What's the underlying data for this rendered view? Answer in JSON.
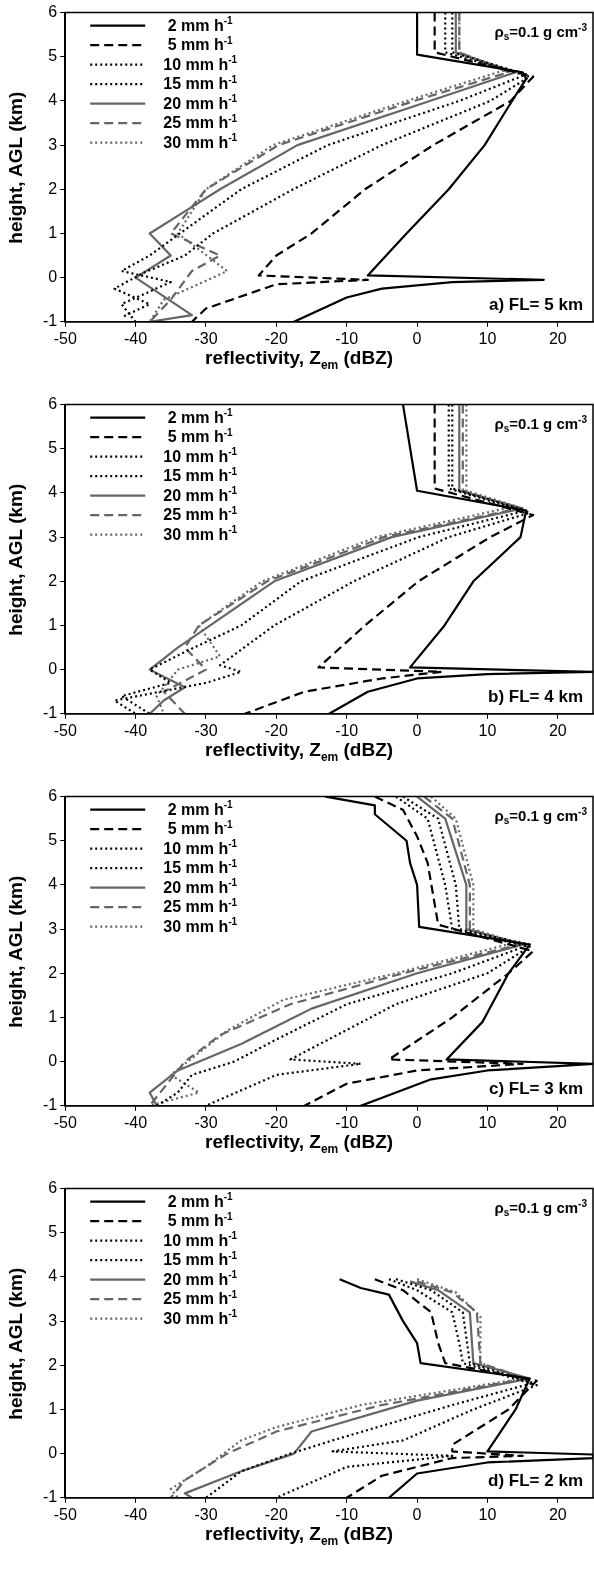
{
  "chart_data": [
    {
      "type": "line",
      "xlabel": "reflectivity, Z$_{em}$ (dBZ)",
      "ylabel": "height, AGL (km)",
      "xlim": [
        -50,
        25
      ],
      "xticks": [
        -50,
        -40,
        -30,
        -20,
        -10,
        0,
        10,
        20
      ],
      "ylim": [
        -1,
        6
      ],
      "yticks": [
        -1,
        0,
        1,
        2,
        3,
        4,
        5,
        6
      ],
      "legend": "top left",
      "annotations": [
        "ρ$_{s}$=0.1 g cm$^{-3}$",
        "a) FL= 5 km"
      ],
      "series": [
        {
          "name": "2 mm h$^{-1}$",
          "color": "#000000",
          "line_style": "solid",
          "x": [
            0,
            0,
            15,
            15.5,
            13.5,
            9.6,
            4.5,
            -1.5,
            -7,
            18,
            5,
            -5,
            -10,
            -17.5
          ],
          "values": [
            6,
            5.05,
            4.65,
            4.5,
            4,
            3,
            2,
            1,
            0.05,
            -0.05,
            -0.1,
            -0.25,
            -0.45,
            -1
          ]
        },
        {
          "name": "5 mm h$^{-1}$",
          "color": "#000000",
          "line_style": "dashed",
          "x": [
            2.5,
            2.5,
            16.5,
            13.3,
            2.3,
            -7.4,
            -15,
            -20,
            -22.5,
            -7,
            -20,
            -30,
            -32
          ],
          "values": [
            6,
            5.1,
            4.55,
            4,
            3,
            2,
            1,
            0.5,
            0.05,
            -0.05,
            -0.15,
            -0.7,
            -1
          ]
        },
        {
          "name": "10 mm h$^{-1}$",
          "color": "#000000",
          "line_style": "dotted",
          "x": [
            4,
            4,
            16,
            10.4,
            -5,
            -17.6,
            -29,
            -33,
            -39,
            -43,
            -38,
            -42
          ],
          "values": [
            6,
            5.1,
            4.55,
            4,
            3,
            2,
            1,
            0.5,
            0.1,
            -0.25,
            -0.6,
            -0.9
          ]
        },
        {
          "name": "15 mm h$^{-1}$",
          "color": "#000000",
          "line_style": "dotted",
          "x": [
            5,
            5,
            15.5,
            6,
            -12.7,
            -25,
            -33.7,
            -38,
            -42,
            -35,
            -42,
            -40
          ],
          "values": [
            6,
            5.1,
            4.6,
            4,
            3,
            2,
            1,
            0.5,
            0.15,
            -0.1,
            -0.6,
            -1
          ]
        },
        {
          "name": "20 mm h$^{-1}$",
          "color": "#666666",
          "line_style": "solid",
          "x": [
            5.5,
            5.5,
            14,
            1.8,
            -17,
            -28,
            -33,
            -38,
            -35,
            -40,
            -32,
            -38
          ],
          "values": [
            6,
            5.1,
            4.65,
            4,
            3,
            2,
            1.5,
            1,
            0.5,
            0,
            -0.85,
            -1
          ]
        },
        {
          "name": "25 mm h$^{-1}$",
          "color": "#666666",
          "line_style": "dashed",
          "x": [
            6,
            6,
            13,
            -0.4,
            -19.7,
            -30,
            -35,
            -28,
            -32,
            -35,
            -38
          ],
          "values": [
            6,
            5.1,
            4.65,
            4,
            3,
            2,
            1,
            0.5,
            0.15,
            -0.5,
            -1
          ]
        },
        {
          "name": "30 mm h$^{-1}$",
          "color": "#666666",
          "line_style": "dotted",
          "x": [
            6,
            6,
            12.5,
            -1.5,
            -20.5,
            -30,
            -34,
            -27,
            -29,
            -36,
            -38
          ],
          "values": [
            6,
            5.1,
            4.7,
            4,
            3,
            2,
            1,
            0.15,
            0,
            -0.5,
            -1
          ]
        }
      ]
    },
    {
      "type": "line",
      "xlabel": "reflectivity, Z$_{em}$ (dBZ)",
      "ylabel": "height, AGL (km)",
      "xlim": [
        -50,
        25
      ],
      "xticks": [
        -50,
        -40,
        -30,
        -20,
        -10,
        0,
        10,
        20
      ],
      "ylim": [
        -1,
        6
      ],
      "yticks": [
        -1,
        0,
        1,
        2,
        3,
        4,
        5,
        6
      ],
      "legend": "top left",
      "annotations": [
        "ρ$_{s}$=0.1 g cm$^{-3}$",
        "b) FL= 4 km"
      ],
      "series": [
        {
          "name": "2 mm h$^{-1}$",
          "color": "#000000",
          "line_style": "solid",
          "x": [
            -2,
            0,
            15.5,
            14.7,
            8,
            3.9,
            -1,
            25,
            10,
            0,
            -7,
            -12.5
          ],
          "values": [
            6,
            4.05,
            3.6,
            3,
            2,
            1,
            0.05,
            -0.05,
            -0.1,
            -0.2,
            -0.5,
            -1
          ]
        },
        {
          "name": "5 mm h$^{-1}$",
          "color": "#000000",
          "line_style": "dashed",
          "x": [
            2.5,
            2.5,
            16.5,
            10.4,
            0.2,
            -7.4,
            -14,
            3.5,
            -5,
            -16,
            -24.5
          ],
          "values": [
            6,
            4.1,
            3.5,
            3,
            2,
            1,
            0.05,
            -0.05,
            -0.2,
            -0.5,
            -1
          ]
        },
        {
          "name": "10 mm h$^{-1}$",
          "color": "#000000",
          "line_style": "dotted",
          "x": [
            4.5,
            4.5,
            16,
            4.5,
            -9,
            -20.3,
            -28,
            -25,
            -30,
            -43,
            -40
          ],
          "values": [
            6,
            4.1,
            3.55,
            3,
            2,
            1,
            0.1,
            -0.05,
            -0.3,
            -0.7,
            -1
          ]
        },
        {
          "name": "15 mm h$^{-1}$",
          "color": "#000000",
          "line_style": "dotted",
          "x": [
            5,
            5,
            15.5,
            0.2,
            -16.5,
            -25,
            -33,
            -38,
            -35,
            -42,
            -38
          ],
          "values": [
            6,
            4.1,
            3.6,
            3,
            2,
            1,
            0.4,
            0,
            -0.3,
            -0.6,
            -1
          ]
        },
        {
          "name": "20 mm h$^{-1}$",
          "color": "#666666",
          "line_style": "solid",
          "x": [
            6,
            6,
            15,
            -3.6,
            -20.3,
            -29.4,
            -34,
            -38,
            -33,
            -36,
            -38
          ],
          "values": [
            6,
            4.05,
            3.65,
            3,
            2,
            1,
            0.5,
            0,
            -0.4,
            -0.7,
            -1
          ]
        },
        {
          "name": "25 mm h$^{-1}$",
          "color": "#666666",
          "line_style": "dashed",
          "x": [
            6.5,
            6.5,
            14.5,
            -4.7,
            -21.3,
            -31,
            -33,
            -30,
            -36,
            -33
          ],
          "values": [
            6,
            4.05,
            3.65,
            3,
            2,
            1,
            0.5,
            0,
            -0.5,
            -1
          ]
        },
        {
          "name": "30 mm h$^{-1}$",
          "color": "#666666",
          "line_style": "dotted",
          "x": [
            7,
            7,
            14,
            -5.8,
            -22,
            -31,
            -28,
            -34,
            -37,
            -36
          ],
          "values": [
            6,
            4.05,
            3.7,
            3,
            2,
            1,
            0.3,
            0,
            -0.6,
            -1
          ]
        }
      ]
    },
    {
      "type": "line",
      "xlabel": "reflectivity, Z$_{em}$ (dBZ)",
      "ylabel": "height, AGL (km)",
      "xlim": [
        -50,
        25
      ],
      "xticks": [
        -50,
        -40,
        -30,
        -20,
        -10,
        0,
        10,
        20
      ],
      "ylim": [
        -1,
        6
      ],
      "yticks": [
        -1,
        0,
        1,
        2,
        3,
        4,
        5,
        6
      ],
      "legend": "top left",
      "annotations": [
        "ρ$_{s}$=0.1 g cm$^{-3}$",
        "c) FL= 3 km"
      ],
      "series": [
        {
          "name": "2 mm h$^{-1}$",
          "color": "#000000",
          "line_style": "solid",
          "x": [
            -13,
            -6,
            -6,
            -1.5,
            -1,
            0,
            0.3,
            16,
            13,
            9.3,
            4.2,
            25,
            20,
            10,
            2,
            -8
          ],
          "values": [
            6,
            5.8,
            5.6,
            5,
            4.5,
            4,
            3.05,
            2.65,
            2,
            0.9,
            0.05,
            -0.05,
            -0.1,
            -0.2,
            -0.4,
            -1
          ]
        },
        {
          "name": "5 mm h$^{-1}$",
          "color": "#000000",
          "line_style": "dashed",
          "x": [
            -6,
            -2,
            0,
            1.5,
            3,
            16.5,
            13,
            5,
            -4,
            15,
            0,
            -10,
            -16
          ],
          "values": [
            6,
            5.7,
            5.1,
            4.5,
            3.1,
            2.5,
            2,
            1,
            0.05,
            -0.05,
            -0.2,
            -0.5,
            -1
          ]
        },
        {
          "name": "10 mm h$^{-1}$",
          "color": "#000000",
          "line_style": "dotted",
          "x": [
            -3,
            1.5,
            4,
            5,
            16,
            10,
            -3,
            -18,
            -8,
            -20,
            -30
          ],
          "values": [
            6,
            5.5,
            4,
            3,
            2.6,
            2,
            1.3,
            0.05,
            -0.05,
            -0.3,
            -1
          ]
        },
        {
          "name": "15 mm h$^{-1}$",
          "color": "#000000",
          "line_style": "dotted",
          "x": [
            -2,
            3,
            5.5,
            6,
            16,
            5,
            -10,
            -20,
            -26,
            -32,
            -34,
            -37
          ],
          "values": [
            6,
            5.5,
            4,
            3,
            2.65,
            2,
            1.3,
            0.5,
            0,
            -0.3,
            -0.7,
            -1
          ]
        },
        {
          "name": "20 mm h$^{-1}$",
          "color": "#666666",
          "line_style": "solid",
          "x": [
            0,
            4,
            7,
            7,
            15,
            0,
            -15,
            -25,
            -34,
            -38,
            -37
          ],
          "values": [
            6,
            5.5,
            4,
            3,
            2.65,
            2,
            1.2,
            0.4,
            -0.2,
            -0.7,
            -1
          ]
        },
        {
          "name": "25 mm h$^{-1}$",
          "color": "#666666",
          "line_style": "dashed",
          "x": [
            1,
            5,
            7.5,
            7.5,
            14.5,
            -2,
            -18,
            -28,
            -33,
            -36,
            -38
          ],
          "values": [
            6,
            5.5,
            4,
            3,
            2.65,
            2,
            1.3,
            0.6,
            0,
            -0.6,
            -1
          ]
        },
        {
          "name": "30 mm h$^{-1}$",
          "color": "#666666",
          "line_style": "dotted",
          "x": [
            2,
            5.5,
            8,
            8,
            14,
            -3,
            -19,
            -27,
            -35,
            -31,
            -38
          ],
          "values": [
            6,
            5.5,
            4,
            3,
            2.7,
            2,
            1.4,
            0.7,
            -0.3,
            -0.7,
            -1
          ]
        }
      ]
    },
    {
      "type": "line",
      "xlabel": "reflectivity, Z$_{em}$ (dBZ)",
      "ylabel": "height, AGL (km)",
      "xlim": [
        -50,
        25
      ],
      "xticks": [
        -50,
        -40,
        -30,
        -20,
        -10,
        0,
        10,
        20
      ],
      "ylim": [
        -1,
        6
      ],
      "yticks": [
        -1,
        0,
        1,
        2,
        3,
        4,
        5,
        6
      ],
      "legend": "top left",
      "annotations": [
        "ρ$_{s}$=0.1 g cm$^{-3}$",
        "d) FL= 2 km"
      ],
      "series": [
        {
          "name": "2 mm h$^{-1}$",
          "color": "#000000",
          "line_style": "solid",
          "x": [
            -11,
            -8,
            -4,
            -2,
            0,
            0.5,
            16,
            14,
            10,
            25,
            25,
            10,
            0,
            -4
          ],
          "values": [
            3.95,
            3.75,
            3.6,
            3,
            2.5,
            2.05,
            1.7,
            1,
            0.05,
            -0.02,
            -0.1,
            -0.2,
            -0.45,
            -1
          ]
        },
        {
          "name": "5 mm h$^{-1}$",
          "color": "#000000",
          "line_style": "dashed",
          "x": [
            -6,
            -2,
            2,
            3,
            4,
            17,
            13,
            5,
            5,
            15,
            5,
            -5,
            -10
          ],
          "values": [
            3.95,
            3.7,
            3.2,
            2.5,
            2.05,
            1.65,
            1,
            0.2,
            0.05,
            -0.05,
            -0.1,
            -0.5,
            -1
          ]
        },
        {
          "name": "10 mm h$^{-1}$",
          "color": "#000000",
          "line_style": "dotted",
          "x": [
            -4,
            0,
            5,
            6,
            6.5,
            17,
            8,
            -2,
            -12,
            5,
            -10,
            -20
          ],
          "values": [
            3.95,
            3.7,
            3.2,
            2.5,
            2.05,
            1.55,
            1,
            0.3,
            0.05,
            -0.05,
            -0.3,
            -1
          ]
        },
        {
          "name": "15 mm h$^{-1}$",
          "color": "#000000",
          "line_style": "dotted",
          "x": [
            -3,
            2,
            6.5,
            7.5,
            16.5,
            5,
            -12,
            -18,
            -25,
            -30
          ],
          "values": [
            3.95,
            3.7,
            3.2,
            2.05,
            1.6,
            1.1,
            0.3,
            0,
            -0.4,
            -1
          ]
        },
        {
          "name": "20 mm h$^{-1}$",
          "color": "#666666",
          "line_style": "solid",
          "x": [
            -1,
            3,
            7.5,
            8,
            16,
            0,
            -15,
            -17.5,
            -25,
            -33,
            -32
          ],
          "values": [
            3.9,
            3.7,
            3.2,
            2.05,
            1.7,
            1.2,
            0.5,
            0,
            -0.4,
            -0.9,
            -1
          ]
        },
        {
          "name": "25 mm h$^{-1}$",
          "color": "#666666",
          "line_style": "dashed",
          "x": [
            0,
            5,
            8.5,
            9,
            15.5,
            -5,
            -20,
            -27,
            -33,
            -35
          ],
          "values": [
            3.9,
            3.65,
            3.2,
            2.05,
            1.7,
            1.1,
            0.5,
            0,
            -0.6,
            -1
          ]
        },
        {
          "name": "30 mm h$^{-1}$",
          "color": "#666666",
          "line_style": "dotted",
          "x": [
            0,
            5.5,
            9,
            9,
            15,
            -8,
            -20,
            -25,
            -30,
            -35,
            -34
          ],
          "values": [
            3.95,
            3.65,
            3.1,
            2.05,
            1.7,
            1.1,
            0.6,
            0.3,
            -0.3,
            -0.8,
            -1
          ]
        }
      ]
    }
  ]
}
